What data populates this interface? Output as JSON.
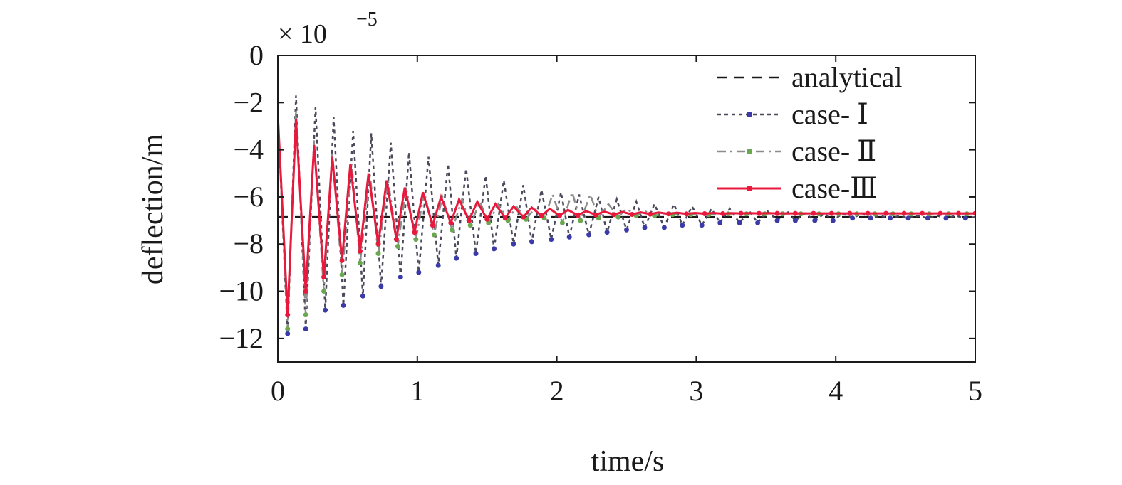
{
  "chart_data": {
    "type": "line",
    "xlabel": "time/s",
    "ylabel": "deflection/m",
    "y_multiplier": "× 10",
    "y_exponent": "−5",
    "xlim": [
      0,
      5
    ],
    "ylim": [
      -13,
      0
    ],
    "xticks": [
      0,
      1,
      2,
      3,
      4,
      5
    ],
    "xtick_labels": [
      "0",
      "1",
      "2",
      "3",
      "4",
      "5"
    ],
    "yticks": [
      0,
      -2,
      -4,
      -6,
      -8,
      -10,
      -12
    ],
    "ytick_labels": [
      "0",
      "−2",
      "−4",
      "−6",
      "−8",
      "−10",
      "−12"
    ],
    "grid": false,
    "legend_position": "top-right",
    "series": [
      {
        "name": "analytical",
        "color": "#1a1a1a",
        "style": "dashed",
        "x": [
          0,
          5
        ],
        "y": [
          -6.85,
          -6.85
        ]
      },
      {
        "name": "case- Ⅰ",
        "color": "#4a4a5a",
        "marker_color": "#3a3aa8",
        "style": "dotted",
        "x": [
          0,
          0.07,
          0.13,
          0.2,
          0.27,
          0.34,
          0.4,
          0.47,
          0.54,
          0.61,
          0.67,
          0.74,
          0.81,
          0.88,
          0.94,
          1.01,
          1.08,
          1.15,
          1.22,
          1.28,
          1.35,
          1.42,
          1.49,
          1.55,
          1.62,
          1.69,
          1.76,
          1.82,
          1.89,
          1.96,
          2.03,
          2.09,
          2.16,
          2.23,
          2.3,
          2.36,
          2.43,
          2.5,
          2.57,
          2.63,
          2.7,
          2.77,
          2.84,
          2.9,
          2.97,
          3.04,
          3.11,
          3.17,
          3.24,
          3.31,
          3.38,
          3.44,
          3.51,
          3.58,
          3.65,
          3.71,
          3.78,
          3.85,
          3.92,
          3.98,
          4.05,
          4.12,
          4.19,
          4.25,
          4.32,
          4.39,
          4.46,
          4.52,
          4.59,
          4.66,
          4.73,
          4.79,
          4.86,
          4.93,
          5.0
        ],
        "y": [
          -2.5,
          -11.8,
          -1.7,
          -11.6,
          -2.2,
          -10.8,
          -2.6,
          -10.6,
          -3.2,
          -10.2,
          -3.3,
          -9.8,
          -3.7,
          -9.4,
          -4.1,
          -9.2,
          -4.3,
          -8.9,
          -4.6,
          -8.6,
          -4.8,
          -8.4,
          -5.1,
          -8.2,
          -5.3,
          -8.0,
          -5.5,
          -7.9,
          -5.7,
          -7.8,
          -5.8,
          -7.7,
          -5.9,
          -7.6,
          -6.0,
          -7.5,
          -6.1,
          -7.4,
          -6.2,
          -7.3,
          -6.3,
          -7.3,
          -6.3,
          -7.2,
          -6.4,
          -7.2,
          -6.5,
          -7.1,
          -6.5,
          -7.1,
          -6.6,
          -7.1,
          -6.6,
          -7.0,
          -6.6,
          -7.0,
          -6.7,
          -7.0,
          -6.7,
          -7.0,
          -6.7,
          -6.9,
          -6.7,
          -6.9,
          -6.8,
          -6.9,
          -6.8,
          -6.9,
          -6.8,
          -6.9,
          -6.8,
          -6.9,
          -6.8,
          -6.9,
          -6.85
        ]
      },
      {
        "name": "case- Ⅱ",
        "color": "#8c8c8c",
        "marker_color": "#6aa84f",
        "style": "dashdot",
        "x": [
          0,
          0.07,
          0.13,
          0.2,
          0.26,
          0.33,
          0.39,
          0.46,
          0.53,
          0.59,
          0.66,
          0.72,
          0.79,
          0.86,
          0.92,
          0.99,
          1.05,
          1.12,
          1.18,
          1.25,
          1.32,
          1.38,
          1.45,
          1.51,
          1.58,
          1.65,
          1.71,
          1.78,
          1.84,
          1.91,
          1.97,
          2.04,
          2.11,
          2.17,
          2.24,
          2.3,
          2.37,
          2.44,
          2.5,
          2.57,
          2.63,
          2.7,
          2.76,
          2.83,
          2.9,
          2.96,
          3.03,
          3.09,
          3.16,
          3.23,
          3.29,
          3.36,
          3.42,
          3.49,
          3.55,
          3.62,
          3.69,
          3.75,
          3.82,
          3.88,
          3.95,
          4.02,
          4.08,
          4.15,
          4.21,
          4.28,
          4.34,
          4.41,
          4.48,
          4.54,
          4.61,
          4.67,
          4.74,
          4.81,
          4.87,
          4.94,
          5.0
        ],
        "y": [
          -2.5,
          -11.6,
          -2.3,
          -11.0,
          -3.6,
          -10.0,
          -4.1,
          -9.3,
          -4.6,
          -8.8,
          -5.0,
          -8.4,
          -5.3,
          -8.1,
          -5.6,
          -7.8,
          -5.8,
          -7.6,
          -6.0,
          -7.4,
          -6.1,
          -7.2,
          -6.2,
          -7.1,
          -6.3,
          -7.0,
          -6.4,
          -6.95,
          -6.5,
          -6.9,
          -5.9,
          -7.1,
          -5.8,
          -7.0,
          -5.9,
          -6.9,
          -6.3,
          -6.85,
          -6.5,
          -6.8,
          -6.6,
          -6.8,
          -6.7,
          -6.75,
          -6.7,
          -6.75,
          -6.7,
          -6.75,
          -6.7,
          -6.72,
          -6.7,
          -6.72,
          -6.7,
          -6.72,
          -6.7,
          -6.72,
          -6.7,
          -6.72,
          -6.7,
          -6.72,
          -6.7,
          -6.72,
          -6.7,
          -6.72,
          -6.7,
          -6.72,
          -6.7,
          -6.72,
          -6.7,
          -6.72,
          -6.7,
          -6.72,
          -6.7,
          -6.72,
          -6.7,
          -6.72,
          -6.7
        ]
      },
      {
        "name": "case-Ⅲ",
        "color": "#e8193c",
        "marker_color": "#e8193c",
        "style": "solid",
        "x": [
          0,
          0.07,
          0.13,
          0.2,
          0.26,
          0.33,
          0.39,
          0.46,
          0.52,
          0.59,
          0.65,
          0.72,
          0.78,
          0.85,
          0.91,
          0.98,
          1.04,
          1.11,
          1.17,
          1.24,
          1.3,
          1.37,
          1.43,
          1.5,
          1.56,
          1.63,
          1.69,
          1.76,
          1.82,
          1.89,
          1.95,
          2.02,
          2.08,
          2.15,
          2.21,
          2.28,
          2.34,
          2.41,
          2.47,
          2.54,
          2.6,
          2.67,
          2.73,
          2.8,
          2.86,
          2.93,
          2.99,
          3.06,
          3.12,
          3.19,
          3.25,
          3.32,
          3.38,
          3.45,
          3.51,
          3.58,
          3.64,
          3.71,
          3.77,
          3.84,
          3.9,
          3.97,
          4.03,
          4.1,
          4.16,
          4.23,
          4.29,
          4.36,
          4.42,
          4.49,
          4.55,
          4.62,
          4.68,
          4.75,
          4.81,
          4.88,
          4.94,
          5.0
        ],
        "y": [
          -2.5,
          -11.0,
          -2.7,
          -10.0,
          -3.8,
          -9.4,
          -4.3,
          -8.7,
          -4.6,
          -8.3,
          -5.0,
          -8.0,
          -5.3,
          -7.8,
          -5.6,
          -7.5,
          -5.8,
          -7.2,
          -6.0,
          -7.1,
          -6.1,
          -7.0,
          -6.2,
          -6.95,
          -6.3,
          -6.9,
          -6.4,
          -6.85,
          -6.45,
          -6.8,
          -6.5,
          -6.8,
          -6.55,
          -6.78,
          -6.6,
          -6.76,
          -6.62,
          -6.75,
          -6.64,
          -6.74,
          -6.65,
          -6.73,
          -6.66,
          -6.72,
          -6.67,
          -6.72,
          -6.68,
          -6.71,
          -6.68,
          -6.71,
          -6.69,
          -6.7,
          -6.69,
          -6.7,
          -6.69,
          -6.7,
          -6.7,
          -6.7,
          -6.7,
          -6.7,
          -6.7,
          -6.7,
          -6.7,
          -6.7,
          -6.7,
          -6.7,
          -6.7,
          -6.7,
          -6.7,
          -6.7,
          -6.7,
          -6.7,
          -6.7,
          -6.7,
          -6.7,
          -6.7,
          -6.7,
          -6.7
        ]
      }
    ]
  }
}
